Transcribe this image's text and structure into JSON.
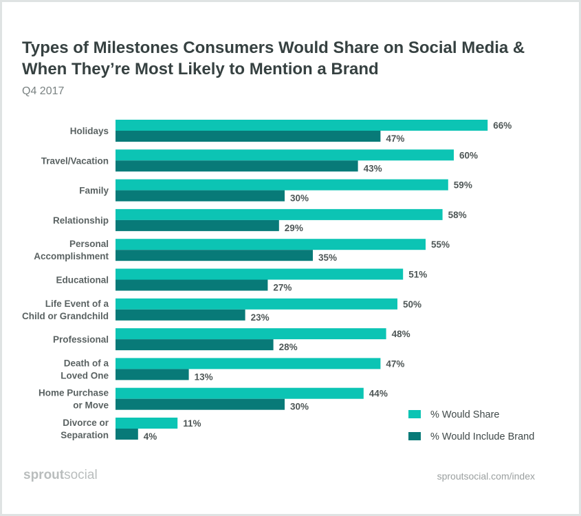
{
  "chart_data": {
    "type": "bar",
    "orientation": "horizontal",
    "title": "Types of Milestones Consumers Would Share on Social Media & When They’re Most Likely to Mention a Brand",
    "title_lines": [
      "Types of Milestones Consumers Would Share on Social Media &",
      "When They’re Most Likely to Mention a Brand"
    ],
    "subtitle": "Q4 2017",
    "categories": [
      [
        "Holidays"
      ],
      [
        "Travel/Vacation"
      ],
      [
        "Family"
      ],
      [
        "Relationship"
      ],
      [
        "Personal",
        "Accomplishment"
      ],
      [
        "Educational"
      ],
      [
        "Life Event of a",
        "Child or Grandchild"
      ],
      [
        "Professional"
      ],
      [
        "Death of a",
        "Loved One"
      ],
      [
        "Home Purchase",
        "or Move"
      ],
      [
        "Divorce or",
        "Separation"
      ]
    ],
    "series": [
      {
        "name": "% Would Share",
        "color": "#0cc4b4",
        "values": [
          66,
          60,
          59,
          58,
          55,
          51,
          50,
          48,
          47,
          44,
          11
        ]
      },
      {
        "name": "% Would Include Brand",
        "color": "#087a78",
        "values": [
          47,
          43,
          30,
          29,
          35,
          27,
          23,
          28,
          13,
          30,
          4
        ]
      }
    ],
    "value_suffix": "%",
    "xlim": [
      0,
      100
    ],
    "grid": false,
    "legend_placement": "bottom-right"
  },
  "footer": {
    "logo_bold": "sprout",
    "logo_light": "social",
    "url": "sproutsocial.com/index"
  }
}
